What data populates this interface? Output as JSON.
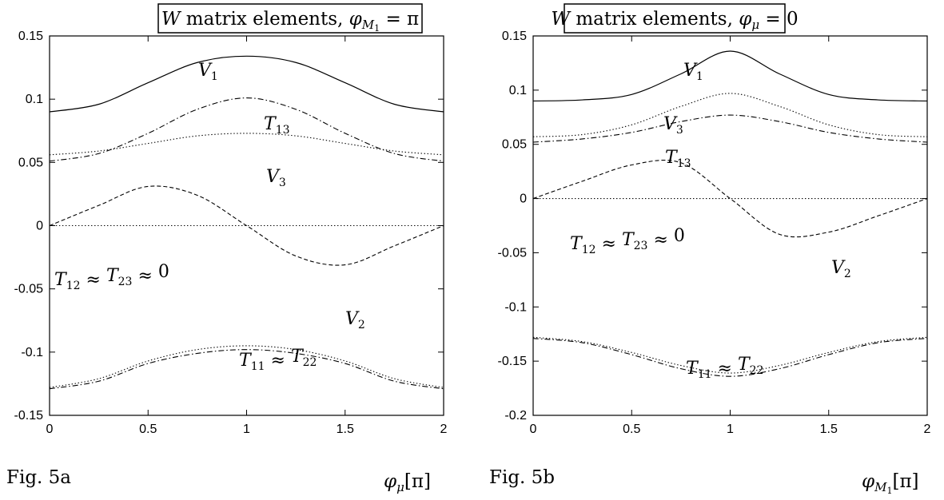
{
  "chart_data": [
    {
      "type": "line",
      "title": {
        "lead": "W",
        "rest": " matrix elements, ",
        "var": "φ",
        "var_sub": "M",
        "var_subsub": "1",
        "tail": " = π"
      },
      "figure_label": "Fig. 5a",
      "xlabel": {
        "sym": "φ",
        "sub": "μ",
        "tail": "[π]"
      },
      "xlim": [
        0,
        2
      ],
      "ylim": [
        -0.15,
        0.15
      ],
      "x_ticks": [
        "0",
        "0.5",
        "1",
        "1.5",
        "2"
      ],
      "y_ticks": [
        "-0.15",
        "-0.1",
        "-0.05",
        "0",
        "0.05",
        "0.1",
        "0.15"
      ],
      "grid": false,
      "x": [
        0,
        0.25,
        0.5,
        0.75,
        1.0,
        1.25,
        1.5,
        1.75,
        2.0
      ],
      "series": [
        {
          "name": "V1",
          "style": "solid",
          "values": [
            0.09,
            0.096,
            0.113,
            0.129,
            0.134,
            0.129,
            0.113,
            0.096,
            0.09
          ]
        },
        {
          "name": "T13",
          "style": "dashdot",
          "values": [
            0.051,
            0.057,
            0.073,
            0.092,
            0.101,
            0.092,
            0.073,
            0.057,
            0.051
          ]
        },
        {
          "name": "V3",
          "style": "dotted",
          "values": [
            0.056,
            0.059,
            0.065,
            0.071,
            0.073,
            0.071,
            0.065,
            0.059,
            0.056
          ]
        },
        {
          "name": "V2",
          "style": "dashed",
          "values": [
            0.0,
            0.016,
            0.031,
            0.024,
            0.0,
            -0.024,
            -0.031,
            -0.016,
            0.0
          ]
        },
        {
          "name": "T12",
          "style": "dotted",
          "values": [
            0,
            0,
            0,
            0,
            0,
            0,
            0,
            0,
            0
          ]
        },
        {
          "name": "T11",
          "style": "dotted",
          "values": [
            -0.128,
            -0.121,
            -0.107,
            -0.098,
            -0.095,
            -0.098,
            -0.107,
            -0.121,
            -0.128
          ]
        },
        {
          "name": "T22",
          "style": "dashdot",
          "values": [
            -0.129,
            -0.123,
            -0.109,
            -0.101,
            -0.098,
            -0.101,
            -0.109,
            -0.123,
            -0.129
          ]
        }
      ],
      "annotations": [
        {
          "id": "V1",
          "sym": "V",
          "sub": "1"
        },
        {
          "id": "T13",
          "sym": "T",
          "sub": "13"
        },
        {
          "id": "V3",
          "sym": "V",
          "sub": "3"
        },
        {
          "id": "V2",
          "sym": "V",
          "sub": "2"
        },
        {
          "id": "T12",
          "text": "T12 ≈ T23 ≈ 0"
        },
        {
          "id": "T11",
          "text": "T11 ≈ T22"
        }
      ]
    },
    {
      "type": "line",
      "title": {
        "lead": "W",
        "rest": " matrix elements, ",
        "var": "φ",
        "var_sub": "μ",
        "var_subsub": "",
        "tail": " = 0"
      },
      "figure_label": "Fig. 5b",
      "xlabel": {
        "sym": "φ",
        "sub": "M",
        "subsub": "1",
        "tail": "[π]"
      },
      "xlim": [
        0,
        2
      ],
      "ylim": [
        -0.2,
        0.15
      ],
      "x_ticks": [
        "0",
        "0.5",
        "1",
        "1.5",
        "2"
      ],
      "y_ticks": [
        "-0.2",
        "-0.15",
        "-0.1",
        "-0.05",
        "0",
        "0.05",
        "0.1",
        "0.15"
      ],
      "grid": false,
      "x": [
        0,
        0.25,
        0.5,
        0.75,
        1.0,
        1.25,
        1.5,
        1.75,
        2.0
      ],
      "series": [
        {
          "name": "V1",
          "style": "solid",
          "values": [
            0.09,
            0.091,
            0.096,
            0.115,
            0.136,
            0.115,
            0.096,
            0.091,
            0.09
          ]
        },
        {
          "name": "V3",
          "style": "dotted",
          "values": [
            0.057,
            0.059,
            0.068,
            0.085,
            0.097,
            0.085,
            0.068,
            0.059,
            0.057
          ]
        },
        {
          "name": "T13",
          "style": "dashdot",
          "values": [
            0.052,
            0.055,
            0.061,
            0.071,
            0.077,
            0.071,
            0.061,
            0.055,
            0.052
          ]
        },
        {
          "name": "V2",
          "style": "dashed",
          "values": [
            0.0,
            0.016,
            0.031,
            0.033,
            0.0,
            -0.033,
            -0.031,
            -0.016,
            0.0
          ]
        },
        {
          "name": "T12",
          "style": "dotted",
          "values": [
            0,
            0,
            0,
            0,
            0,
            0,
            0,
            0,
            0
          ]
        },
        {
          "name": "T11",
          "style": "dotted",
          "values": [
            -0.128,
            -0.132,
            -0.142,
            -0.154,
            -0.161,
            -0.154,
            -0.142,
            -0.132,
            -0.128
          ]
        },
        {
          "name": "T22",
          "style": "dashdot",
          "values": [
            -0.129,
            -0.133,
            -0.144,
            -0.157,
            -0.164,
            -0.157,
            -0.144,
            -0.133,
            -0.129
          ]
        }
      ],
      "annotations": [
        {
          "id": "V1",
          "sym": "V",
          "sub": "1"
        },
        {
          "id": "V3",
          "sym": "V",
          "sub": "3"
        },
        {
          "id": "T13",
          "sym": "T",
          "sub": "13"
        },
        {
          "id": "V2",
          "sym": "V",
          "sub": "2"
        },
        {
          "id": "T12",
          "text": "T12 ≈ T23 ≈ 0"
        },
        {
          "id": "T11",
          "text": "T11 ≈ T22"
        }
      ]
    }
  ]
}
